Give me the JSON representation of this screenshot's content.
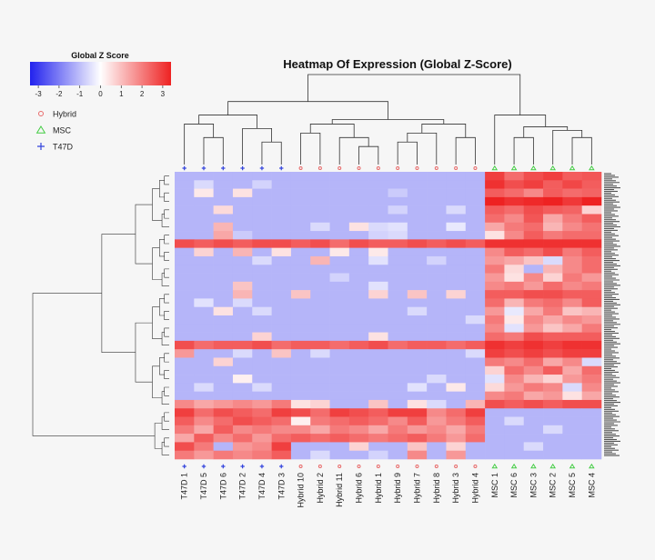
{
  "chart_data": {
    "type": "heatmap",
    "title": "Heatmap Of Expression (Global Z-Score)",
    "colorbar": {
      "title": "Global Z Score",
      "ticks": [
        "-3",
        "-2",
        "-1",
        "0",
        "1",
        "2",
        "3"
      ],
      "range": [
        -3.4,
        3.4
      ],
      "low_color": "#2222ee",
      "mid_color": "#ffffff",
      "high_color": "#ee2222"
    },
    "legend": [
      {
        "label": "Hybrid",
        "marker": "circle",
        "color": "#e86a6a"
      },
      {
        "label": "MSC",
        "marker": "triangle",
        "color": "#44cc44"
      },
      {
        "label": "T47D",
        "marker": "plus",
        "color": "#3344dd"
      }
    ],
    "columns": [
      "T47D  1",
      "T47D  5",
      "T47D  6",
      "T47D  2",
      "T47D  4",
      "T47D  3",
      "Hybrid  10",
      "Hybrid  2",
      "Hybrid  11",
      "Hybrid  6",
      "Hybrid  1",
      "Hybrid  9",
      "Hybrid  7",
      "Hybrid  8",
      "Hybrid  3",
      "Hybrid  4",
      "MSC  1",
      "MSC  6",
      "MSC  3",
      "MSC  2",
      "MSC  5",
      "MSC  4"
    ],
    "column_groups": [
      "T47D",
      "T47D",
      "T47D",
      "T47D",
      "T47D",
      "T47D",
      "Hybrid",
      "Hybrid",
      "Hybrid",
      "Hybrid",
      "Hybrid",
      "Hybrid",
      "Hybrid",
      "Hybrid",
      "Hybrid",
      "Hybrid",
      "MSC",
      "MSC",
      "MSC",
      "MSC",
      "MSC",
      "MSC"
    ],
    "values": [
      [
        -1,
        -1,
        -1,
        -1,
        -1,
        -1,
        -1,
        -1,
        -1,
        -1,
        -1,
        -1,
        -1,
        -1,
        -1,
        -1,
        2.6,
        2.0,
        2.4,
        2.6,
        2.2,
        2.3
      ],
      [
        -1,
        -0.5,
        -1,
        -1,
        -0.6,
        -1,
        -1,
        -1,
        -1,
        -1,
        -1,
        -1,
        -1,
        -1,
        -1,
        -1,
        2.8,
        2.4,
        2.6,
        2.2,
        2.5,
        2.2
      ],
      [
        -1,
        0.3,
        -1,
        0.4,
        -1,
        -1,
        -1,
        -1,
        -1,
        -1,
        -1,
        -0.7,
        -1,
        -1,
        -1,
        -1,
        2.2,
        2.0,
        1.6,
        2.2,
        2.0,
        2.1
      ],
      [
        -1,
        -1,
        -1,
        -1,
        -1,
        -1,
        -1,
        -1,
        -1,
        -1,
        -1,
        -1,
        -1,
        -1,
        -1,
        -1,
        3.0,
        2.8,
        2.9,
        3.0,
        2.7,
        3.0
      ],
      [
        -1,
        -1,
        0.5,
        -1,
        -1,
        -1,
        -1,
        -1,
        -1,
        -1,
        -1,
        -0.6,
        -1,
        -1,
        -0.5,
        -1,
        2.2,
        2.0,
        2.4,
        2.2,
        2.1,
        0.6
      ],
      [
        -1,
        -1,
        -1,
        -1,
        -1,
        -1,
        -1,
        -1,
        -1,
        -1,
        -1,
        -1,
        -1,
        -1,
        -1,
        -1,
        2.0,
        1.6,
        2.3,
        1.2,
        1.8,
        2.2
      ],
      [
        -1,
        -1,
        1.0,
        -1,
        -1,
        -1,
        -1,
        -0.5,
        -1,
        0.4,
        -0.5,
        -0.4,
        -1,
        -1,
        -0.3,
        -1,
        1.2,
        1.8,
        2.0,
        1.0,
        1.6,
        1.9
      ],
      [
        -1,
        -1,
        1.2,
        -0.7,
        -1,
        -1,
        -1,
        -1,
        -1,
        -1,
        -0.6,
        -0.5,
        -1,
        -1,
        -1,
        -1,
        0.4,
        1.6,
        2.2,
        1.8,
        2.0,
        2.0
      ],
      [
        2.4,
        2.2,
        2.4,
        2.2,
        2.4,
        2.4,
        2.2,
        2.4,
        2.0,
        2.4,
        2.2,
        2.2,
        2.4,
        2.2,
        2.4,
        2.2,
        2.8,
        2.8,
        2.8,
        2.8,
        2.8,
        2.8
      ],
      [
        -1,
        0.6,
        -1,
        1.0,
        -1,
        0.4,
        -1,
        -1,
        0.3,
        -1,
        0.3,
        -1,
        -1,
        -1,
        -1,
        -1,
        1.6,
        2.2,
        2.0,
        2.4,
        1.8,
        2.2
      ],
      [
        -1,
        -1,
        -1,
        -1,
        -0.5,
        -1,
        -1,
        1.0,
        -1,
        -1,
        -0.4,
        -1,
        -1,
        -0.6,
        -1,
        -1,
        1.4,
        1.2,
        0.8,
        -0.5,
        1.6,
        2.0
      ],
      [
        -1,
        -1,
        -1,
        -1,
        -1,
        -1,
        -1,
        -1,
        -1,
        -1,
        -1,
        -1,
        -1,
        -1,
        -1,
        -1,
        1.8,
        0.5,
        -1,
        1.0,
        1.6,
        2.0
      ],
      [
        -1,
        -1,
        -1,
        -1,
        -1,
        -1,
        -1,
        -1,
        -0.6,
        -1,
        -1,
        -1,
        -1,
        -1,
        -1,
        -1,
        1.4,
        0.4,
        1.6,
        0.6,
        1.8,
        1.4
      ],
      [
        -1,
        -1,
        -1,
        0.8,
        -1,
        -1,
        -1,
        -1,
        -1,
        -1,
        -0.4,
        -1,
        -1,
        -1,
        -1,
        -1,
        1.6,
        1.8,
        1.4,
        2.0,
        1.6,
        1.8
      ],
      [
        -1,
        -1,
        -1,
        1.0,
        -1,
        -1,
        0.8,
        -1,
        -1,
        -1,
        0.6,
        -1,
        0.8,
        -1,
        0.6,
        -1,
        2.2,
        2.2,
        2.4,
        2.4,
        2.2,
        2.2
      ],
      [
        -1,
        -0.4,
        -1,
        -0.5,
        -1,
        -1,
        -1,
        -1,
        -1,
        -1,
        -1,
        -1,
        -1,
        -1,
        -1,
        -1,
        2.0,
        1.0,
        1.8,
        2.0,
        1.6,
        2.2
      ],
      [
        -1,
        -1,
        0.4,
        -1,
        -0.5,
        -1,
        -1,
        -1,
        -1,
        -1,
        -1,
        -1,
        -0.5,
        -1,
        -1,
        -1,
        1.4,
        -0.3,
        1.2,
        1.8,
        0.8,
        1.0
      ],
      [
        -1,
        -1,
        -1,
        -1,
        -1,
        -1,
        -1,
        -1,
        -1,
        -1,
        -1,
        -1,
        -1,
        -1,
        -1,
        -0.5,
        1.8,
        0.3,
        1.6,
        1.2,
        1.6,
        1.4
      ],
      [
        -1,
        -1,
        -1,
        -1,
        -1,
        -1,
        -1,
        -1,
        -1,
        -1,
        -1,
        -1,
        -1,
        -1,
        -1,
        -1,
        1.6,
        -0.4,
        1.4,
        0.8,
        1.2,
        1.8
      ],
      [
        -1,
        -1,
        -1,
        -1,
        0.6,
        -1,
        -1,
        -1,
        -1,
        -1,
        0.4,
        -1,
        -1,
        -1,
        -1,
        -1,
        2.0,
        1.8,
        2.4,
        2.2,
        2.2,
        2.2
      ],
      [
        2.4,
        2.0,
        2.2,
        2.2,
        2.4,
        2.0,
        2.2,
        2.2,
        2.0,
        2.2,
        2.4,
        2.0,
        2.2,
        2.2,
        2.0,
        2.2,
        2.8,
        2.6,
        2.8,
        2.6,
        2.8,
        2.8
      ],
      [
        1.4,
        -1,
        -1,
        -0.5,
        -1,
        0.8,
        -1,
        -0.5,
        -1,
        -1,
        -1,
        -1,
        -1,
        -1,
        -1,
        -0.5,
        2.6,
        2.4,
        2.6,
        2.4,
        2.6,
        2.6
      ],
      [
        -1,
        -1,
        0.6,
        -1,
        -1,
        -1,
        -1,
        -1,
        -1,
        -1,
        -1,
        -1,
        -1,
        -1,
        -1,
        -1,
        1.8,
        1.6,
        2.0,
        1.2,
        1.6,
        -0.5
      ],
      [
        -1,
        -1,
        -1,
        -1,
        -1,
        -1,
        -1,
        -1,
        -1,
        -1,
        -1,
        -1,
        -1,
        -1,
        -1,
        -1,
        0.6,
        2.0,
        1.6,
        2.2,
        1.2,
        2.0
      ],
      [
        -1,
        -1,
        -1,
        0.2,
        -1,
        -1,
        -1,
        -1,
        -1,
        -1,
        -1,
        -1,
        -1,
        -0.5,
        -1,
        -1,
        -0.4,
        1.6,
        1.0,
        0.6,
        1.4,
        1.8
      ],
      [
        -1,
        -0.5,
        -1,
        -1,
        -0.5,
        -1,
        -1,
        -1,
        -1,
        -1,
        -1,
        -1,
        -0.4,
        -1,
        0.3,
        -1,
        0.5,
        1.4,
        1.8,
        1.6,
        -0.5,
        1.6
      ],
      [
        -1,
        -1,
        -1,
        -1,
        -1,
        -1,
        -1,
        -1,
        -1,
        -1,
        -1,
        -1,
        -1,
        -1,
        -1,
        -1,
        1.6,
        1.8,
        1.2,
        1.4,
        0.4,
        1.2
      ],
      [
        1.6,
        1.2,
        1.4,
        1.6,
        1.4,
        1.8,
        0.4,
        0.6,
        -1,
        -1,
        0.8,
        -1,
        0.4,
        -0.5,
        -1,
        1.0,
        2.4,
        2.2,
        2.4,
        2.2,
        2.4,
        2.4
      ],
      [
        2.6,
        2.0,
        2.4,
        2.2,
        2.0,
        2.6,
        2.4,
        2.0,
        2.6,
        2.4,
        2.2,
        2.6,
        2.6,
        1.6,
        2.0,
        2.6,
        -1,
        -1,
        -1,
        -1,
        -1,
        -1
      ],
      [
        2.2,
        1.6,
        2.0,
        2.4,
        2.2,
        2.0,
        0.2,
        1.8,
        2.0,
        2.2,
        2.0,
        1.6,
        2.2,
        1.4,
        1.8,
        2.2,
        -1,
        -0.5,
        -1,
        -1,
        -1,
        -1
      ],
      [
        1.8,
        1.2,
        2.2,
        1.6,
        1.8,
        1.6,
        1.6,
        1.2,
        1.8,
        1.6,
        1.2,
        1.8,
        1.4,
        1.6,
        1.2,
        1.8,
        -1,
        -1,
        -1,
        -0.5,
        -1,
        -1
      ],
      [
        1.2,
        2.2,
        1.6,
        2.0,
        1.4,
        2.0,
        2.2,
        2.0,
        2.2,
        2.0,
        1.8,
        2.0,
        2.2,
        1.8,
        1.4,
        2.0,
        -1,
        -1,
        -1,
        -1,
        -1,
        -1
      ],
      [
        2.4,
        1.8,
        -1,
        1.4,
        1.6,
        2.6,
        -1,
        -1,
        -1,
        0.6,
        -1,
        -1,
        0.8,
        -1,
        0.6,
        -1,
        -1,
        -1,
        -0.5,
        -1,
        -1,
        -1
      ],
      [
        1.8,
        1.4,
        1.8,
        1.6,
        1.8,
        2.2,
        -1,
        -0.5,
        -1,
        -1,
        -0.6,
        -1,
        1.6,
        -1,
        1.4,
        -1,
        -1,
        -1,
        -1,
        -1,
        -1,
        -1
      ]
    ]
  }
}
